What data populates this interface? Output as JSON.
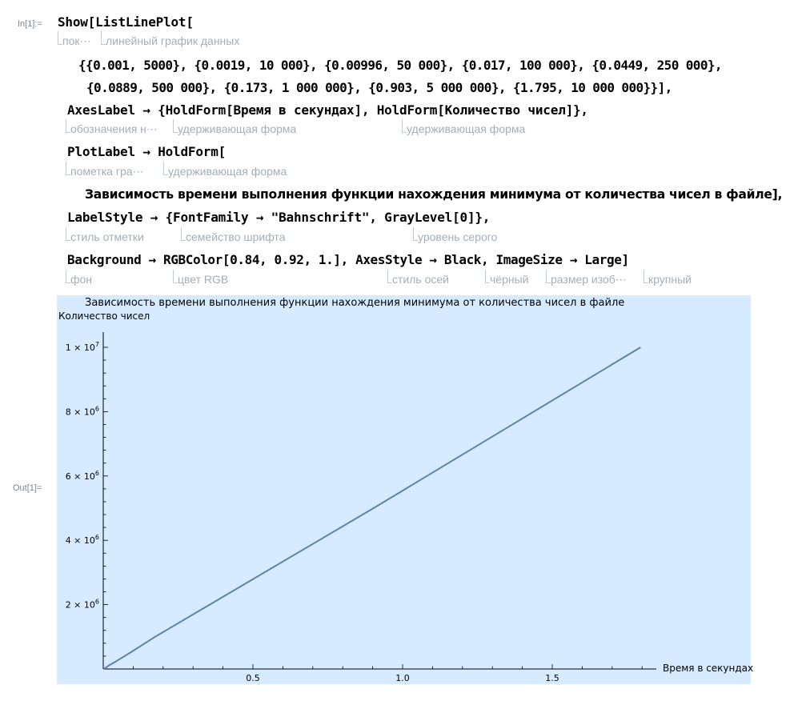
{
  "cells": {
    "in_label": "In[1]:=",
    "out_label": "Out[1]="
  },
  "code": {
    "l1": "Show[ListLinePlot[",
    "l2": "{{0.001, 5000}, {0.0019, 10 000}, {0.00996, 50 000}, {0.017, 100 000}, {0.0449, 250 000},",
    "l3": "{0.0889, 500 000}, {0.173, 1 000 000}, {0.903, 5 000 000}, {1.795, 10 000 000}}],",
    "l4": "AxesLabel → {HoldForm[Время в секундах], HoldForm[Количество чисел]},",
    "l5": "PlotLabel → HoldForm[",
    "l6": "Зависимость времени выполнения функции нахождения минимума от количества чисел в файле],",
    "l7": "LabelStyle → {FontFamily → \"Bahnschrift\", GrayLevel[0]},",
    "l8": "Background → RGBColor[0.84, 0.92, 1.], AxesStyle → Black, ImageSize → Large]"
  },
  "hints": {
    "h1a": "пок⋯",
    "h1b": "линейный график данных",
    "h4a": "обозначения н⋯",
    "h4b": "удерживающая форма",
    "h4c": "удерживающая форма",
    "h5a": "пометка гра⋯",
    "h5b": "удерживающая форма",
    "h7a": "стиль отметки",
    "h7b": "семейство шрифта",
    "h7c": "уровень серого",
    "h8a": "фон",
    "h8b": "цвет RGB",
    "h8c": "стиль осей",
    "h8d": "чёрный",
    "h8e": "размер изоб⋯",
    "h8f": "крупный"
  },
  "chart_data": {
    "type": "line",
    "title": "Зависимость времени выполнения функции нахождения минимума от количества чисел в файле",
    "xlabel": "Время в секундах",
    "ylabel": "Количество чисел",
    "xlim": [
      0,
      1.9
    ],
    "ylim": [
      0,
      10500000
    ],
    "x_ticks": [
      "0.5",
      "1.0",
      "1.5"
    ],
    "y_ticks": [
      {
        "base": "2 × 10",
        "exp": "6"
      },
      {
        "base": "4 × 10",
        "exp": "6"
      },
      {
        "base": "6 × 10",
        "exp": "6"
      },
      {
        "base": "8 × 10",
        "exp": "6"
      },
      {
        "base": "1 × 10",
        "exp": "7"
      }
    ],
    "background": "#d6ebff",
    "line_color": "#5e81a8",
    "grid": false,
    "series": [
      {
        "x": [
          0.001,
          0.0019,
          0.00996,
          0.017,
          0.0449,
          0.0889,
          0.173,
          0.903,
          1.795
        ],
        "y": [
          5000,
          10000,
          50000,
          100000,
          250000,
          500000,
          1000000,
          5000000,
          10000000
        ]
      }
    ]
  }
}
